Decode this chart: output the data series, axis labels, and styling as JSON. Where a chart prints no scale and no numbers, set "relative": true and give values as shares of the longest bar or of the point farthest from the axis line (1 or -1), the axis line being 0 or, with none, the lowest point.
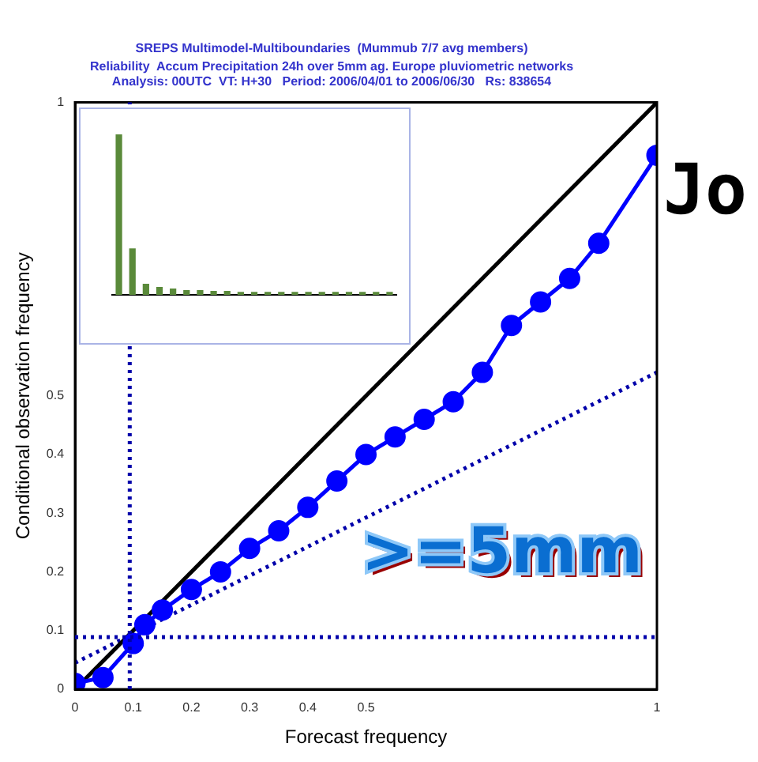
{
  "chart_data": [
    {
      "type": "line",
      "title": "SREPS Multimodel-Multiboundaries  (Mummub 7/7 avg members)",
      "subtitle": "Reliability  Accum Precipitation 24h over 5mm ag. Europe pluviometric networks\nAnalysis: 00UTC  VT: H+30   Period: 2006/04/01 to 2006/06/30   Rs: 838654",
      "xlabel": "Forecast frequency",
      "ylabel": "Conditional observation frequency",
      "series": [
        {
          "type": "line",
          "color": "#0000ff",
          "marker": "circle",
          "line_style": "solid",
          "x": [
            0,
            0.048,
            0.1,
            0.12,
            0.15,
            0.2,
            0.25,
            0.3,
            0.35,
            0.4,
            0.45,
            0.5,
            0.55,
            0.6,
            0.65,
            0.7,
            0.75,
            0.8,
            0.85,
            0.9,
            1
          ],
          "values": [
            0.01,
            0.02,
            0.078,
            0.11,
            0.135,
            0.17,
            0.2,
            0.24,
            0.27,
            0.31,
            0.355,
            0.4,
            0.43,
            0.46,
            0.49,
            0.54,
            0.62,
            0.66,
            0.7,
            0.76,
            0.91
          ]
        },
        {
          "type": "line",
          "color": "#000000",
          "marker": "none",
          "line_style": "solid",
          "x": [
            0,
            1
          ],
          "values": [
            0,
            1
          ]
        },
        {
          "type": "line",
          "color": "#0000aa",
          "marker": "none",
          "line_style": "dotted",
          "x": [
            0,
            1
          ],
          "values": [
            0.045,
            0.54
          ]
        }
      ],
      "xlim": [
        0,
        1
      ],
      "ylim": [
        0,
        1
      ],
      "xticks": [
        0,
        0.1,
        0.2,
        0.3,
        0.4,
        0.5,
        1
      ],
      "yticks": [
        0,
        0.1,
        0.2,
        0.3,
        0.4,
        0.5,
        1
      ],
      "ref_lines": [
        {
          "axis": "x",
          "value": 0.094,
          "color": "#0000aa",
          "line_style": "dotted"
        },
        {
          "axis": "y",
          "value": 0.089,
          "color": "#0000aa",
          "line_style": "dotted"
        }
      ],
      "annotations": [
        "Jo",
        ">=5mm"
      ],
      "grid": false,
      "legend": false
    },
    {
      "type": "bar",
      "relative": true,
      "color": "#5a8a3a",
      "categories": [
        null,
        null,
        null,
        null,
        null,
        null,
        null,
        null,
        null,
        null,
        null,
        null,
        null,
        null,
        null,
        null,
        null,
        null,
        null,
        null,
        null
      ],
      "values": [
        1,
        0.29,
        0.07,
        0.05,
        0.04,
        0.03,
        0.03,
        0.025,
        0.025,
        0.02,
        0.02,
        0.02,
        0.02,
        0.02,
        0.02,
        0.02,
        0.02,
        0.02,
        0.02,
        0.02,
        0.02
      ],
      "legend": false,
      "grid": false
    }
  ]
}
